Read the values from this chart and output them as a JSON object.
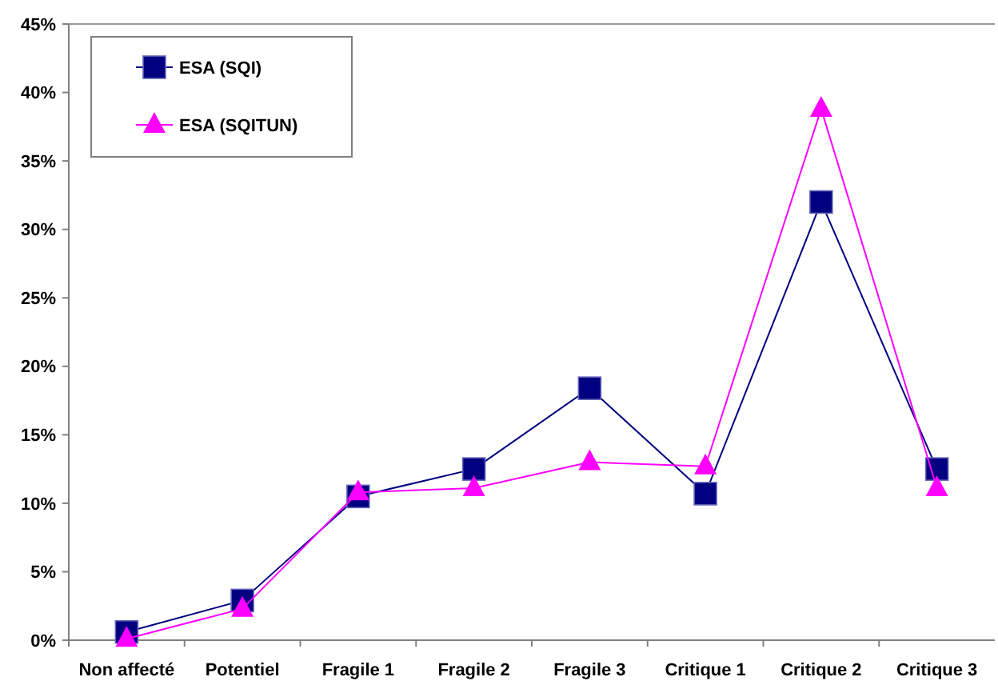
{
  "chart_data": {
    "type": "line",
    "categories": [
      "Non affecté",
      "Potentiel",
      "Fragile 1",
      "Fragile 2",
      "Fragile 3",
      "Critique 1",
      "Critique 2",
      "Critique 3"
    ],
    "series": [
      {
        "name": "ESA (SQI)",
        "color": "#000080",
        "marker": "square",
        "values": [
          0.6,
          2.9,
          10.5,
          12.5,
          18.4,
          10.7,
          32.0,
          12.5
        ]
      },
      {
        "name": "ESA (SQITUN)",
        "color": "#ff00ff",
        "marker": "triangle",
        "values": [
          0.1,
          2.3,
          10.8,
          11.1,
          13.0,
          12.7,
          38.8,
          11.1
        ]
      }
    ],
    "ylim": [
      0,
      45
    ],
    "yticks": [
      {
        "value": 0,
        "label": "0%"
      },
      {
        "value": 5,
        "label": "5%"
      },
      {
        "value": 10,
        "label": "10%"
      },
      {
        "value": 15,
        "label": "15%"
      },
      {
        "value": 20,
        "label": "20%"
      },
      {
        "value": 25,
        "label": "25%"
      },
      {
        "value": 30,
        "label": "30%"
      },
      {
        "value": 35,
        "label": "35%"
      },
      {
        "value": 40,
        "label": "40%"
      },
      {
        "value": 45,
        "label": "45%"
      }
    ],
    "grid": false,
    "legend": "top left",
    "line_style": "solid"
  }
}
